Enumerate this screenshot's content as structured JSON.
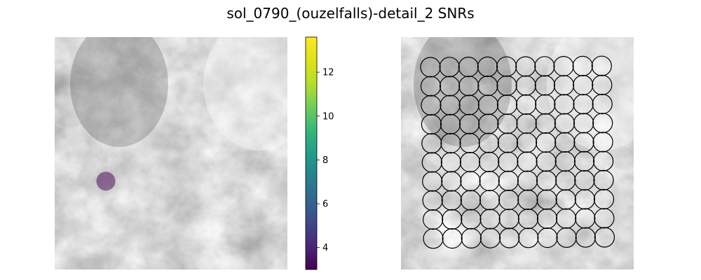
{
  "chart_data": [
    {
      "type": "heatmap",
      "title": "sol_0790_(ouzelfalls)-detail_2 SNRs",
      "image": "grayscale rock texture",
      "colormap": "viridis",
      "colorbar": {
        "range": [
          3.0,
          13.6
        ],
        "ticks": [
          4,
          6,
          8,
          10,
          12
        ],
        "tick_labels": [
          "4",
          "6",
          "8",
          "10",
          "12"
        ]
      },
      "points": [
        {
          "x": 0.22,
          "y": 0.38,
          "snr": 3.0
        }
      ],
      "marker_alpha": 0.5,
      "axes_visible": false
    },
    {
      "type": "scatter",
      "image": "grayscale rock texture",
      "grid": {
        "rows": 10,
        "cols": 10
      },
      "marker": "open circle",
      "marker_color": "#000000",
      "axes_visible": false
    }
  ]
}
